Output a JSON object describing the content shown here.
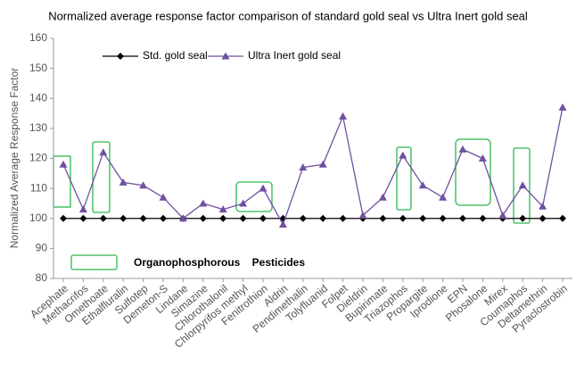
{
  "chart_data": {
    "type": "line",
    "title": "Normalized average response factor comparison of standard gold seal vs Ultra Inert gold seal",
    "y_label": "Normalized Average Response Factor",
    "annotation": "Organophosphorous    Pesticides",
    "categories": [
      "Acephate",
      "Methacrifos",
      "Omethoate",
      "Ethalfluralin",
      "Sulfotep",
      "Demeton-S",
      "Lindane",
      "Simazine",
      "Chlorothalonil",
      "Chlorpyrifos methyl",
      "Fenitrothion",
      "Aldrin",
      "Pendimethalin",
      "Tolyfluanid",
      "Folpet",
      "Dieldrin",
      "Bupirimate",
      "Triazophos",
      "Propargite",
      "Iprodione",
      "EPN",
      "Phosalone",
      "Mirex",
      "Coumaphos",
      "Deltamethrin",
      "Pyraclostrobin"
    ],
    "series": [
      {
        "name": "Std. gold seal",
        "color": "#000000",
        "marker": "diamond",
        "values": [
          100,
          100,
          100,
          100,
          100,
          100,
          100,
          100,
          100,
          100,
          100,
          100,
          100,
          100,
          100,
          100,
          100,
          100,
          100,
          100,
          100,
          100,
          100,
          100,
          100,
          100
        ]
      },
      {
        "name": "Ultra Inert gold seal",
        "color": "#7050a0",
        "marker": "triangle",
        "values": [
          118,
          103,
          122,
          112,
          111,
          107,
          100,
          105,
          103,
          105,
          110,
          98,
          117,
          118,
          134,
          101,
          107,
          121,
          111,
          107,
          123,
          120,
          101,
          111,
          104,
          137
        ]
      }
    ],
    "ylim": [
      80,
      160
    ],
    "yticks": [
      80,
      90,
      100,
      110,
      120,
      130,
      140,
      150,
      160
    ]
  }
}
